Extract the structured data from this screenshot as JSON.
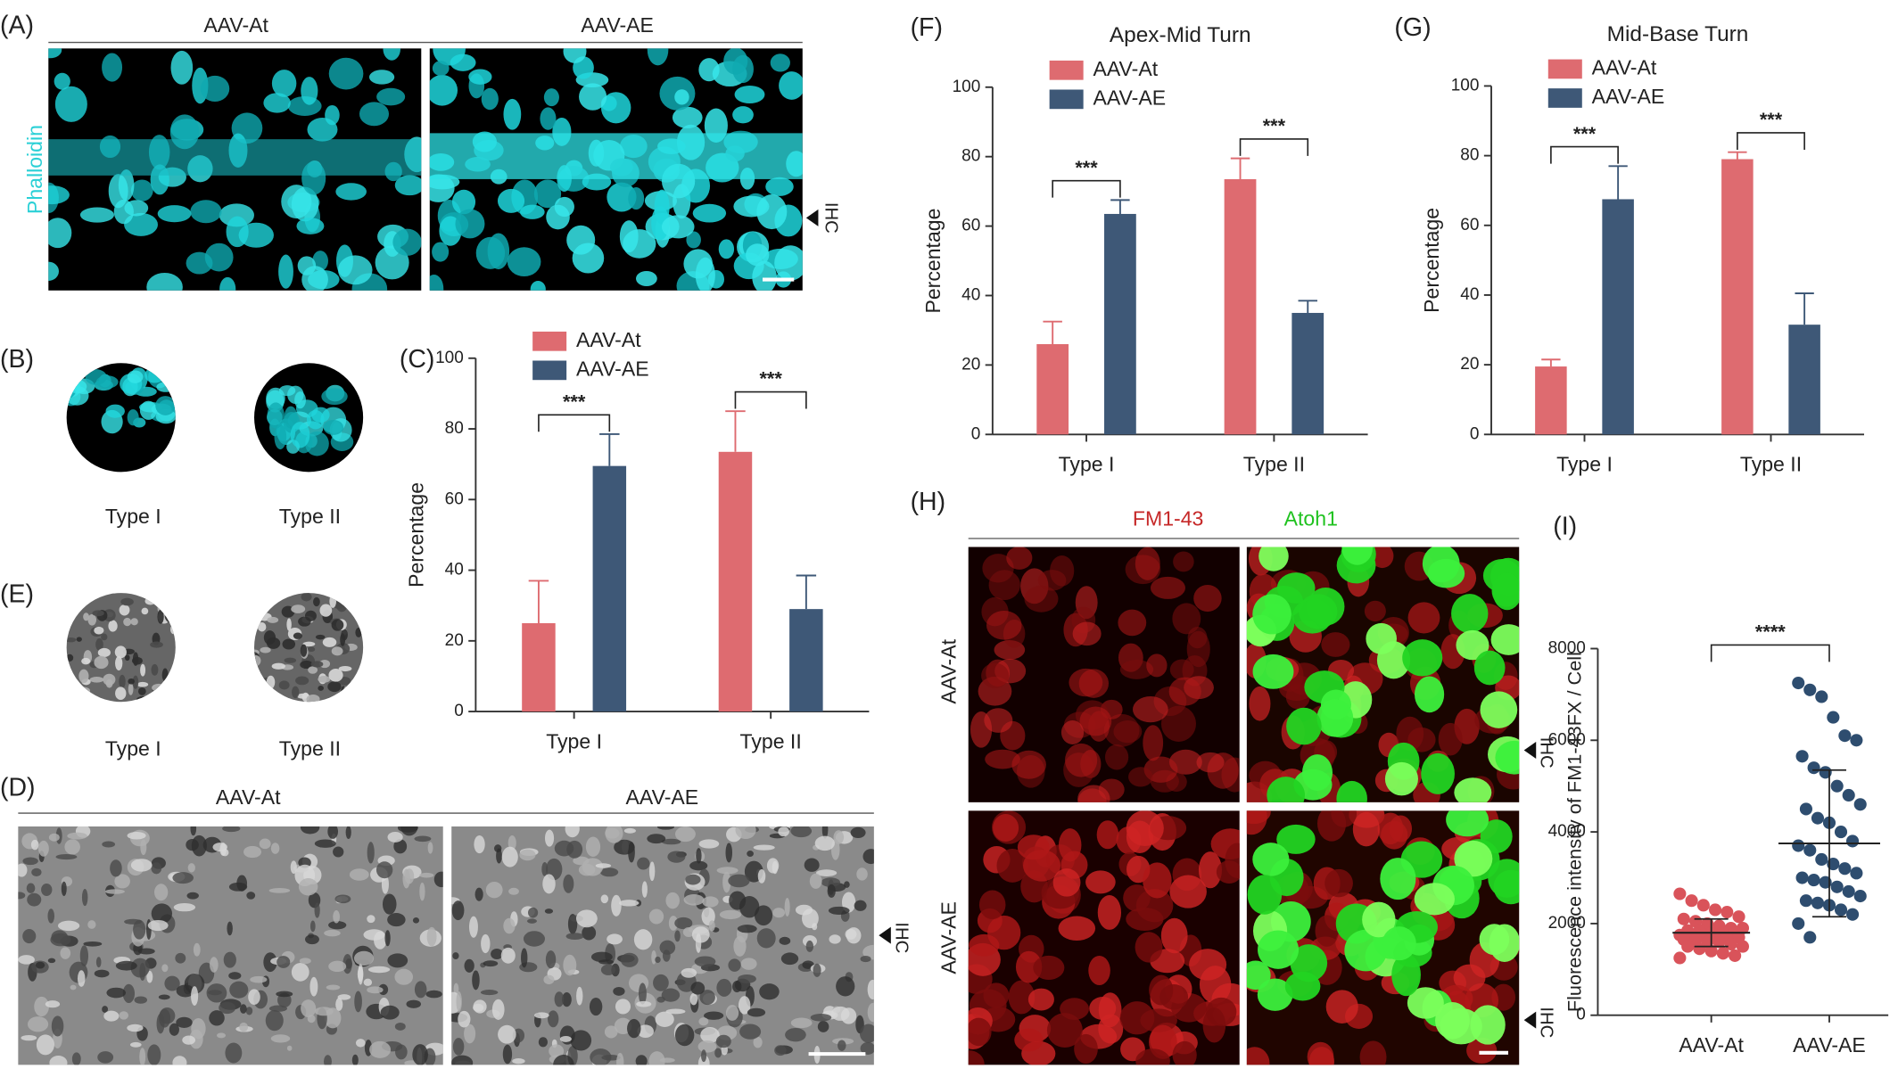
{
  "figure": {
    "panel_labels": {
      "A": "(A)",
      "B": "(B)",
      "C": "(C)",
      "D": "(D)",
      "E": "(E)",
      "F": "(F)",
      "G": "(G)",
      "H": "(H)",
      "I": "(I)"
    },
    "a": {
      "groups": [
        "AAV-At",
        "AAV-AE"
      ],
      "stain": "Phalloidin",
      "marker": "IHC"
    },
    "b": {
      "types": [
        "Type I",
        "Type II"
      ]
    },
    "e": {
      "types": [
        "Type I",
        "Type II"
      ]
    },
    "d": {
      "groups": [
        "AAV-At",
        "AAV-AE"
      ],
      "marker": "IHC"
    },
    "h": {
      "channels": [
        "FM1-43",
        "Atoh1"
      ],
      "groups": [
        "AAV-At",
        "AAV-AE"
      ],
      "marker": "IHC"
    }
  },
  "chart_data": [
    {
      "type": "bar",
      "ylabel": "Percentage",
      "categories": [
        "Type I",
        "Type II"
      ],
      "series": [
        {
          "name": "AAV-At",
          "color": "#de6b70",
          "values": [
            25,
            73.5
          ],
          "errors": [
            12,
            11.5
          ]
        },
        {
          "name": "AAV-AE",
          "color": "#3e5877",
          "values": [
            69.5,
            29
          ],
          "errors": [
            9,
            9.5
          ]
        }
      ],
      "significance": [
        "***",
        "***"
      ],
      "ylim": [
        0,
        100
      ],
      "yticks": [
        0,
        20,
        40,
        60,
        80,
        100
      ],
      "legend": "upper left"
    },
    {
      "type": "bar",
      "title": "Apex-Mid Turn",
      "ylabel": "Percentage",
      "categories": [
        "Type I",
        "Type II"
      ],
      "series": [
        {
          "name": "AAV-At",
          "color": "#de6b70",
          "values": [
            26,
            73.5
          ],
          "errors": [
            6.5,
            6
          ]
        },
        {
          "name": "AAV-AE",
          "color": "#3e5877",
          "values": [
            63.5,
            35
          ],
          "errors": [
            4,
            3.5
          ]
        }
      ],
      "significance": [
        "***",
        "***"
      ],
      "ylim": [
        0,
        100
      ],
      "yticks": [
        0,
        20,
        40,
        60,
        80,
        100
      ],
      "legend": "upper left"
    },
    {
      "type": "bar",
      "title": "Mid-Base Turn",
      "ylabel": "Percentage",
      "categories": [
        "Type I",
        "Type II"
      ],
      "series": [
        {
          "name": "AAV-At",
          "color": "#de6b70",
          "values": [
            19.5,
            79
          ],
          "errors": [
            2,
            2
          ]
        },
        {
          "name": "AAV-AE",
          "color": "#3e5877",
          "values": [
            67.5,
            31.5
          ],
          "errors": [
            9.5,
            9
          ]
        }
      ],
      "significance": [
        "***",
        "***"
      ],
      "ylim": [
        0,
        100
      ],
      "yticks": [
        0,
        20,
        40,
        60,
        80,
        100
      ],
      "legend": "upper left"
    },
    {
      "type": "scatter",
      "ylabel": "Fluorescence intensity of FM1-43FX / Cell",
      "categories": [
        "AAV-At",
        "AAV-AE"
      ],
      "series": [
        {
          "color": "#d9535a",
          "mean": 1800,
          "sd": 300,
          "values": [
            2650,
            2500,
            2400,
            2300,
            2250,
            2150,
            2100,
            2050,
            2000,
            1950,
            1900,
            1900,
            1850,
            1850,
            1800,
            1800,
            1800,
            1750,
            1750,
            1750,
            1700,
            1700,
            1700,
            1650,
            1650,
            1600,
            1600,
            1550,
            1500,
            1500,
            1450,
            1400,
            1350,
            1300,
            1250
          ]
        },
        {
          "color": "#2e4d6f",
          "mean": 3750,
          "sd": 1600,
          "values": [
            7250,
            7100,
            6950,
            6500,
            6100,
            6000,
            5650,
            5400,
            5300,
            5000,
            4800,
            4600,
            4500,
            4300,
            4200,
            4000,
            3800,
            3700,
            3600,
            3400,
            3300,
            3200,
            3100,
            3000,
            2950,
            2900,
            2800,
            2700,
            2600,
            2500,
            2450,
            2400,
            2300,
            2200,
            2000,
            1700
          ]
        }
      ],
      "significance": [
        "****"
      ],
      "ylim": [
        0,
        8000
      ],
      "yticks": [
        0,
        2000,
        4000,
        6000,
        8000
      ]
    }
  ]
}
